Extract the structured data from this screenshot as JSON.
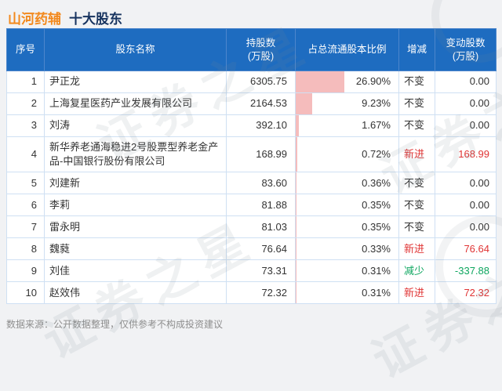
{
  "title": {
    "stock": "山河药辅",
    "suffix": "十大股东"
  },
  "watermark": "证券之星",
  "footer": "数据来源：公开数据整理，仅供参考不构成投资建议",
  "colors": {
    "title_orange": "#f2891d",
    "title_navy": "#17335f",
    "header_blue": "#1e6cc0",
    "grid_blue": "#cfe0f3",
    "bar_pink": "#f5bcbc",
    "up_red": "#e03434",
    "down_green": "#0ea65f"
  },
  "table": {
    "headers": [
      "序号",
      "股东名称",
      "持股数\n(万股)",
      "占总流通股本比例",
      "增减",
      "变动股数\n(万股)"
    ],
    "rows": [
      {
        "no": "1",
        "name": "尹正龙",
        "shares": "6305.75",
        "pct": "26.90%",
        "pct_value": 26.9,
        "change": "不变",
        "change_type": "unchanged",
        "delta": "0.00"
      },
      {
        "no": "2",
        "name": "上海复星医药产业发展有限公司",
        "shares": "2164.53",
        "pct": "9.23%",
        "pct_value": 9.23,
        "change": "不变",
        "change_type": "unchanged",
        "delta": "0.00"
      },
      {
        "no": "3",
        "name": "刘涛",
        "shares": "392.10",
        "pct": "1.67%",
        "pct_value": 1.67,
        "change": "不变",
        "change_type": "unchanged",
        "delta": "0.00"
      },
      {
        "no": "4",
        "name": "新华养老通海稳进2号股票型养老金产品-中国银行股份有限公司",
        "shares": "168.99",
        "pct": "0.72%",
        "pct_value": 0.72,
        "change": "新进",
        "change_type": "new",
        "delta": "168.99"
      },
      {
        "no": "5",
        "name": "刘建新",
        "shares": "83.60",
        "pct": "0.36%",
        "pct_value": 0.36,
        "change": "不变",
        "change_type": "unchanged",
        "delta": "0.00"
      },
      {
        "no": "6",
        "name": "李莉",
        "shares": "81.88",
        "pct": "0.35%",
        "pct_value": 0.35,
        "change": "不变",
        "change_type": "unchanged",
        "delta": "0.00"
      },
      {
        "no": "7",
        "name": "雷永明",
        "shares": "81.03",
        "pct": "0.35%",
        "pct_value": 0.35,
        "change": "不变",
        "change_type": "unchanged",
        "delta": "0.00"
      },
      {
        "no": "8",
        "name": "魏蕤",
        "shares": "76.64",
        "pct": "0.33%",
        "pct_value": 0.33,
        "change": "新进",
        "change_type": "new",
        "delta": "76.64"
      },
      {
        "no": "9",
        "name": "刘佳",
        "shares": "73.31",
        "pct": "0.31%",
        "pct_value": 0.31,
        "change": "减少",
        "change_type": "decrease",
        "delta": "-337.88"
      },
      {
        "no": "10",
        "name": "赵效伟",
        "shares": "72.32",
        "pct": "0.31%",
        "pct_value": 0.31,
        "change": "新进",
        "change_type": "new",
        "delta": "72.32"
      }
    ]
  },
  "chart_data": {
    "type": "table",
    "title": "山河药辅 十大股东",
    "categories": [
      "尹正龙",
      "上海复星医药产业发展有限公司",
      "刘涛",
      "新华养老通海稳进2号股票型养老金产品-中国银行股份有限公司",
      "刘建新",
      "李莉",
      "雷永明",
      "魏蕤",
      "刘佳",
      "赵效伟"
    ],
    "series": [
      {
        "name": "持股数(万股)",
        "values": [
          6305.75,
          2164.53,
          392.1,
          168.99,
          83.6,
          81.88,
          81.03,
          76.64,
          73.31,
          72.32
        ]
      },
      {
        "name": "占总流通股本比例(%)",
        "values": [
          26.9,
          9.23,
          1.67,
          0.72,
          0.36,
          0.35,
          0.35,
          0.33,
          0.31,
          0.31
        ]
      },
      {
        "name": "变动股数(万股)",
        "values": [
          0.0,
          0.0,
          0.0,
          168.99,
          0.0,
          0.0,
          0.0,
          76.64,
          -337.88,
          72.32
        ]
      }
    ],
    "changes": [
      "不变",
      "不变",
      "不变",
      "新进",
      "不变",
      "不变",
      "不变",
      "新进",
      "减少",
      "新进"
    ],
    "bar_column": "占总流通股本比例",
    "max_pct": 26.9,
    "bar_max_fill_ratio": 0.47
  }
}
